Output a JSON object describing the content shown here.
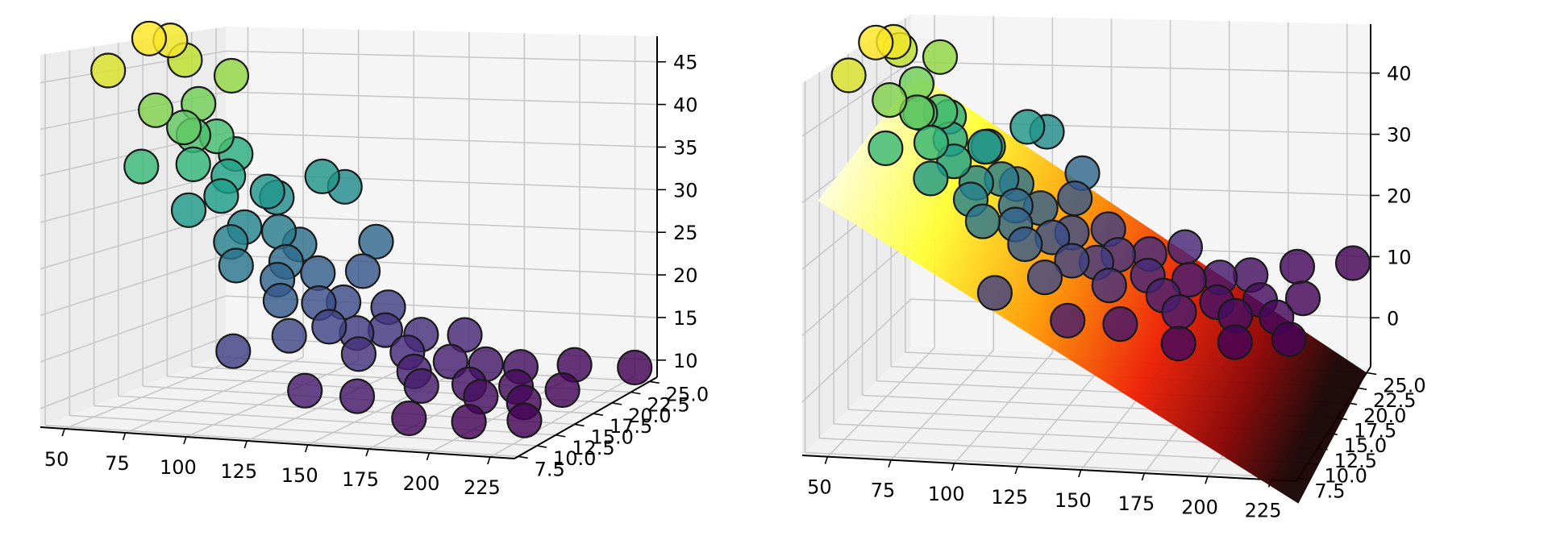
{
  "chart_data": [
    {
      "type": "scatter",
      "projection": "3d",
      "grid": true,
      "title": "",
      "xlabel": "",
      "ylabel": "",
      "zlabel": "",
      "x_ticks": [
        "50",
        "75",
        "100",
        "125",
        "150",
        "175",
        "200",
        "225"
      ],
      "y_ticks": [
        "7.5",
        "10.0",
        "12.5",
        "15.0",
        "17.5",
        "20.0",
        "22.5",
        "25.0"
      ],
      "z_ticks": [
        "10",
        "15",
        "20",
        "25",
        "30",
        "35",
        "40",
        "45"
      ],
      "xlim": [
        40,
        235
      ],
      "ylim": [
        7,
        26
      ],
      "zlim": [
        8,
        48
      ],
      "colormap": "viridis",
      "color_by": "z",
      "marker_edge": "#1a1a1a",
      "points": [
        {
          "x": 46,
          "y": 12.5,
          "z": 44.6
        },
        {
          "x": 49,
          "y": 16.0,
          "z": 46.6
        },
        {
          "x": 54,
          "y": 17.0,
          "z": 46.0
        },
        {
          "x": 52,
          "y": 19.0,
          "z": 43.0
        },
        {
          "x": 60,
          "y": 18.5,
          "z": 38.5
        },
        {
          "x": 64,
          "y": 21.0,
          "z": 40.5
        },
        {
          "x": 58,
          "y": 14.5,
          "z": 39.5
        },
        {
          "x": 68,
          "y": 15.0,
          "z": 37.5
        },
        {
          "x": 66,
          "y": 16.5,
          "z": 36.0
        },
        {
          "x": 72,
          "y": 17.5,
          "z": 35.5
        },
        {
          "x": 76,
          "y": 14.0,
          "z": 34.0
        },
        {
          "x": 62,
          "y": 12.0,
          "z": 34.5
        },
        {
          "x": 70,
          "y": 20.0,
          "z": 32.5
        },
        {
          "x": 75,
          "y": 18.0,
          "z": 31.0
        },
        {
          "x": 82,
          "y": 15.5,
          "z": 30.0
        },
        {
          "x": 78,
          "y": 13.0,
          "z": 29.5
        },
        {
          "x": 86,
          "y": 19.5,
          "z": 28.8
        },
        {
          "x": 84,
          "y": 21.0,
          "z": 27.5
        },
        {
          "x": 90,
          "y": 16.0,
          "z": 26.5
        },
        {
          "x": 92,
          "y": 14.0,
          "z": 25.8
        },
        {
          "x": 95,
          "y": 18.5,
          "z": 25.0
        },
        {
          "x": 100,
          "y": 12.5,
          "z": 24.0
        },
        {
          "x": 98,
          "y": 20.0,
          "z": 23.0
        },
        {
          "x": 104,
          "y": 17.0,
          "z": 22.5
        },
        {
          "x": 108,
          "y": 15.0,
          "z": 21.5
        },
        {
          "x": 110,
          "y": 19.0,
          "z": 20.5
        },
        {
          "x": 115,
          "y": 13.5,
          "z": 20.0
        },
        {
          "x": 118,
          "y": 22.0,
          "z": 19.5
        },
        {
          "x": 120,
          "y": 16.5,
          "z": 18.5
        },
        {
          "x": 125,
          "y": 18.0,
          "z": 18.0
        },
        {
          "x": 128,
          "y": 11.0,
          "z": 17.5
        },
        {
          "x": 132,
          "y": 14.5,
          "z": 17.0
        },
        {
          "x": 135,
          "y": 20.5,
          "z": 16.5
        },
        {
          "x": 140,
          "y": 15.5,
          "z": 16.0
        },
        {
          "x": 145,
          "y": 17.5,
          "z": 15.5
        },
        {
          "x": 150,
          "y": 13.0,
          "z": 15.0
        },
        {
          "x": 155,
          "y": 19.0,
          "z": 14.5
        },
        {
          "x": 160,
          "y": 16.0,
          "z": 14.0
        },
        {
          "x": 165,
          "y": 21.5,
          "z": 13.5
        },
        {
          "x": 170,
          "y": 14.0,
          "z": 13.0
        },
        {
          "x": 175,
          "y": 17.0,
          "z": 12.8
        },
        {
          "x": 180,
          "y": 12.0,
          "z": 12.5
        },
        {
          "x": 185,
          "y": 18.5,
          "z": 12.0
        },
        {
          "x": 190,
          "y": 15.0,
          "z": 11.5
        },
        {
          "x": 195,
          "y": 20.0,
          "z": 11.2
        },
        {
          "x": 200,
          "y": 13.5,
          "z": 11.0
        },
        {
          "x": 205,
          "y": 16.5,
          "z": 10.8
        },
        {
          "x": 210,
          "y": 22.5,
          "z": 10.5
        },
        {
          "x": 215,
          "y": 14.5,
          "z": 10.2
        },
        {
          "x": 220,
          "y": 18.0,
          "z": 10.0
        },
        {
          "x": 225,
          "y": 11.5,
          "z": 9.8
        },
        {
          "x": 230,
          "y": 24.5,
          "z": 9.6
        },
        {
          "x": 118,
          "y": 23.5,
          "z": 22.0
        },
        {
          "x": 102,
          "y": 24.0,
          "z": 27.5
        },
        {
          "x": 96,
          "y": 23.0,
          "z": 29.0
        },
        {
          "x": 112,
          "y": 9.0,
          "z": 16.5
        },
        {
          "x": 140,
          "y": 9.5,
          "z": 12.5
        },
        {
          "x": 160,
          "y": 10.0,
          "z": 12.0
        },
        {
          "x": 185,
          "y": 9.0,
          "z": 10.5
        },
        {
          "x": 205,
          "y": 10.5,
          "z": 9.8
        }
      ]
    },
    {
      "type": "scatter",
      "projection": "3d",
      "grid": true,
      "title": "",
      "xlabel": "",
      "ylabel": "",
      "zlabel": "",
      "x_ticks": [
        "50",
        "75",
        "100",
        "125",
        "150",
        "175",
        "200",
        "225"
      ],
      "y_ticks": [
        "7.5",
        "10.0",
        "12.5",
        "15.0",
        "17.5",
        "20.0",
        "22.5",
        "25.0"
      ],
      "z_ticks": [
        "0",
        "10",
        "20",
        "30",
        "40"
      ],
      "xlim": [
        40,
        235
      ],
      "ylim": [
        7,
        26
      ],
      "zlim": [
        -8,
        48
      ],
      "colormap": "viridis",
      "color_by": "z",
      "marker_edge": "#1a1a1a",
      "surface": {
        "colormap": "hot",
        "x_range": [
          45,
          235
        ],
        "y_range": [
          7.5,
          25.0
        ],
        "z_corners": {
          "x_min_y_min": 30.0,
          "x_min_y_max": 34.0,
          "x_max_y_min": -12.0,
          "x_max_y_max": -8.0
        }
      },
      "points": "same as first chart"
    }
  ]
}
